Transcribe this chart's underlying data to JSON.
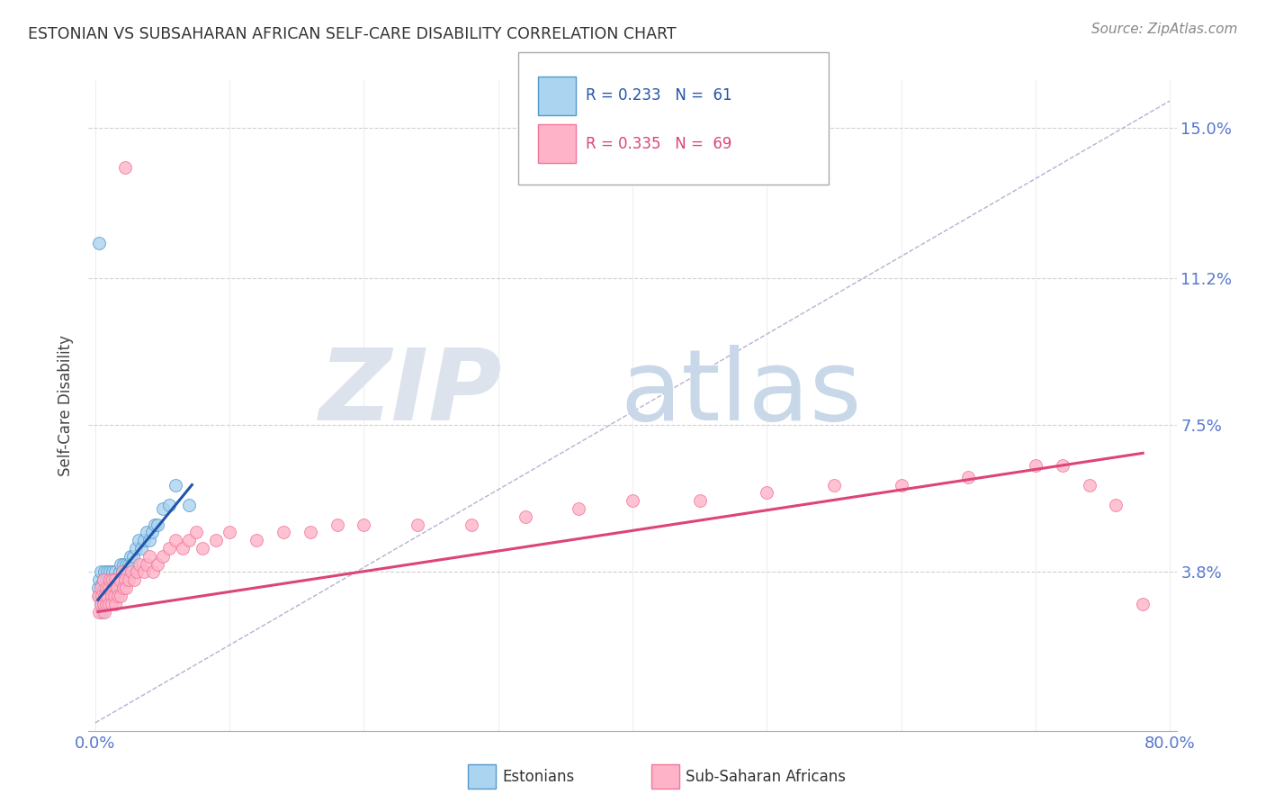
{
  "title": "ESTONIAN VS SUBSAHARAN AFRICAN SELF-CARE DISABILITY CORRELATION CHART",
  "source": "Source: ZipAtlas.com",
  "ylabel": "Self-Care Disability",
  "ytick_labels": [
    "15.0%",
    "11.2%",
    "7.5%",
    "3.8%"
  ],
  "ytick_values": [
    0.15,
    0.112,
    0.075,
    0.038
  ],
  "xlim": [
    0.0,
    0.8
  ],
  "ylim": [
    0.0,
    0.16
  ],
  "background_color": "#ffffff",
  "title_color": "#333333",
  "source_color": "#888888",
  "axis_label_color": "#5577cc",
  "estonian_color": "#aad4f0",
  "estonian_edge": "#5599cc",
  "subsaharan_color": "#ffb3c8",
  "subsaharan_edge": "#ee7799",
  "trend_estonian_color": "#2255aa",
  "trend_subsaharan_color": "#dd4477",
  "diagonal_color": "#aaaacc",
  "grid_color": "#cccccc",
  "estonian_x": [
    0.002,
    0.003,
    0.003,
    0.004,
    0.004,
    0.005,
    0.005,
    0.005,
    0.006,
    0.006,
    0.006,
    0.007,
    0.007,
    0.007,
    0.008,
    0.008,
    0.008,
    0.009,
    0.009,
    0.01,
    0.01,
    0.01,
    0.011,
    0.011,
    0.012,
    0.012,
    0.013,
    0.013,
    0.014,
    0.014,
    0.015,
    0.015,
    0.016,
    0.017,
    0.018,
    0.018,
    0.019,
    0.02,
    0.02,
    0.021,
    0.022,
    0.023,
    0.024,
    0.025,
    0.026,
    0.027,
    0.028,
    0.03,
    0.032,
    0.034,
    0.036,
    0.038,
    0.04,
    0.042,
    0.044,
    0.046,
    0.05,
    0.055,
    0.06,
    0.07,
    0.003
  ],
  "estonian_y": [
    0.034,
    0.032,
    0.036,
    0.03,
    0.038,
    0.028,
    0.035,
    0.033,
    0.03,
    0.036,
    0.032,
    0.034,
    0.03,
    0.038,
    0.032,
    0.036,
    0.03,
    0.034,
    0.038,
    0.032,
    0.036,
    0.03,
    0.034,
    0.038,
    0.032,
    0.036,
    0.034,
    0.038,
    0.032,
    0.036,
    0.034,
    0.038,
    0.036,
    0.034,
    0.038,
    0.036,
    0.04,
    0.038,
    0.036,
    0.04,
    0.038,
    0.04,
    0.038,
    0.04,
    0.042,
    0.04,
    0.042,
    0.044,
    0.046,
    0.044,
    0.046,
    0.048,
    0.046,
    0.048,
    0.05,
    0.05,
    0.054,
    0.055,
    0.06,
    0.055,
    0.121
  ],
  "subsaharan_x": [
    0.002,
    0.003,
    0.004,
    0.004,
    0.005,
    0.006,
    0.006,
    0.007,
    0.007,
    0.008,
    0.008,
    0.009,
    0.01,
    0.01,
    0.011,
    0.012,
    0.012,
    0.013,
    0.014,
    0.015,
    0.015,
    0.016,
    0.017,
    0.018,
    0.019,
    0.02,
    0.021,
    0.022,
    0.023,
    0.025,
    0.027,
    0.029,
    0.031,
    0.033,
    0.036,
    0.038,
    0.04,
    0.043,
    0.046,
    0.05,
    0.055,
    0.06,
    0.065,
    0.07,
    0.075,
    0.08,
    0.09,
    0.1,
    0.12,
    0.14,
    0.16,
    0.18,
    0.2,
    0.24,
    0.28,
    0.32,
    0.36,
    0.4,
    0.45,
    0.5,
    0.55,
    0.6,
    0.65,
    0.7,
    0.72,
    0.74,
    0.76,
    0.78,
    0.022
  ],
  "subsaharan_y": [
    0.032,
    0.028,
    0.034,
    0.03,
    0.032,
    0.03,
    0.036,
    0.032,
    0.028,
    0.034,
    0.03,
    0.032,
    0.034,
    0.03,
    0.036,
    0.032,
    0.03,
    0.036,
    0.032,
    0.03,
    0.036,
    0.034,
    0.032,
    0.036,
    0.032,
    0.038,
    0.034,
    0.036,
    0.034,
    0.036,
    0.038,
    0.036,
    0.038,
    0.04,
    0.038,
    0.04,
    0.042,
    0.038,
    0.04,
    0.042,
    0.044,
    0.046,
    0.044,
    0.046,
    0.048,
    0.044,
    0.046,
    0.048,
    0.046,
    0.048,
    0.048,
    0.05,
    0.05,
    0.05,
    0.05,
    0.052,
    0.054,
    0.056,
    0.056,
    0.058,
    0.06,
    0.06,
    0.062,
    0.065,
    0.065,
    0.06,
    0.055,
    0.03,
    0.14
  ],
  "trend_est_x0": 0.002,
  "trend_est_x1": 0.072,
  "trend_est_y0": 0.031,
  "trend_est_y1": 0.06,
  "trend_sub_x0": 0.002,
  "trend_sub_x1": 0.78,
  "trend_sub_y0": 0.028,
  "trend_sub_y1": 0.068
}
